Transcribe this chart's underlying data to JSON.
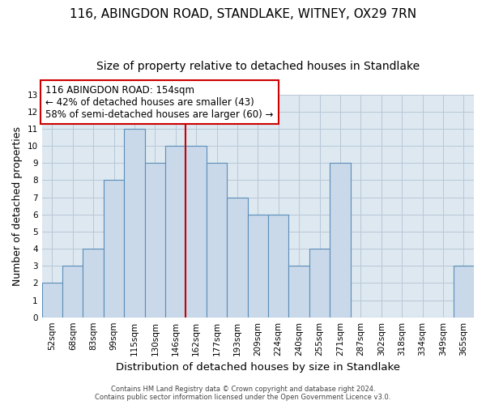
{
  "title1": "116, ABINGDON ROAD, STANDLAKE, WITNEY, OX29 7RN",
  "title2": "Size of property relative to detached houses in Standlake",
  "xlabel": "Distribution of detached houses by size in Standlake",
  "ylabel": "Number of detached properties",
  "footer1": "Contains HM Land Registry data © Crown copyright and database right 2024.",
  "footer2": "Contains public sector information licensed under the Open Government Licence v3.0.",
  "categories": [
    "52sqm",
    "68sqm",
    "83sqm",
    "99sqm",
    "115sqm",
    "130sqm",
    "146sqm",
    "162sqm",
    "177sqm",
    "193sqm",
    "209sqm",
    "224sqm",
    "240sqm",
    "255sqm",
    "271sqm",
    "287sqm",
    "302sqm",
    "318sqm",
    "334sqm",
    "349sqm",
    "365sqm"
  ],
  "values": [
    2,
    3,
    4,
    8,
    11,
    9,
    10,
    10,
    9,
    7,
    6,
    6,
    3,
    4,
    9,
    0,
    0,
    0,
    0,
    0,
    3
  ],
  "bar_color": "#c9d9ea",
  "bar_edge_color": "#5b8db8",
  "subject_line_color": "#cc0000",
  "annotation_line1": "116 ABINGDON ROAD: 154sqm",
  "annotation_line2": "← 42% of detached houses are smaller (43)",
  "annotation_line3": "58% of semi-detached houses are larger (60) →",
  "annotation_box_edge": "#cc0000",
  "ylim": [
    0,
    13
  ],
  "yticks": [
    0,
    1,
    2,
    3,
    4,
    5,
    6,
    7,
    8,
    9,
    10,
    11,
    12,
    13
  ],
  "bg_color": "white",
  "plot_bg_color": "#dde8f0",
  "grid_color": "#b8c8d8",
  "bar_width": 1.0,
  "title_fontsize": 11,
  "subtitle_fontsize": 10,
  "xlabel_fontsize": 9.5,
  "ylabel_fontsize": 9,
  "tick_fontsize": 7.5,
  "annotation_fontsize": 8.5,
  "footer_fontsize": 6
}
